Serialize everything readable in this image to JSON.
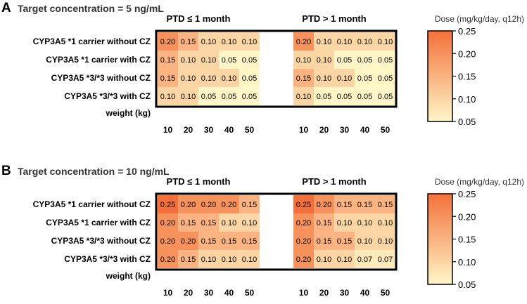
{
  "chart_data": [
    {
      "type": "heatmap",
      "panel_letter": "A",
      "title": "Target concentration = 5 ng/mL",
      "group_labels": [
        "PTD ≤ 1 month",
        "PTD > 1 month"
      ],
      "row_labels": [
        "CYP3A5 *1 carrier without CZ",
        "CYP3A5 *1 carrier with CZ",
        "CYP3A5 *3/*3 without CZ",
        "CYP3A5 *3/*3 with CZ"
      ],
      "x_axis_label": "weight (kg)",
      "x_ticks": [
        "10",
        "20",
        "30",
        "40",
        "50"
      ],
      "groups": [
        {
          "name": "PTD ≤ 1 month",
          "values": [
            [
              0.2,
              0.15,
              0.1,
              0.1,
              0.1
            ],
            [
              0.15,
              0.1,
              0.1,
              0.05,
              0.05
            ],
            [
              0.15,
              0.1,
              0.1,
              0.1,
              0.05
            ],
            [
              0.1,
              0.1,
              0.05,
              0.05,
              0.05
            ]
          ]
        },
        {
          "name": "PTD > 1 month",
          "values": [
            [
              0.2,
              0.1,
              0.1,
              0.1,
              0.1
            ],
            [
              0.1,
              0.1,
              0.05,
              0.05,
              0.05
            ],
            [
              0.15,
              0.1,
              0.1,
              0.05,
              0.05
            ],
            [
              0.1,
              0.05,
              0.05,
              0.05,
              0.05
            ]
          ]
        }
      ],
      "colorbar": {
        "label": "Dose (mg/kg/day, q12h)",
        "range": [
          0.05,
          0.25
        ],
        "ticks": [
          "0.25",
          "0.20",
          "0.15",
          "0.10",
          "0.05"
        ],
        "low_color": "#fff6c8",
        "high_color": "#f4703a"
      }
    },
    {
      "type": "heatmap",
      "panel_letter": "B",
      "title": "Target concentration = 10 ng/mL",
      "group_labels": [
        "PTD ≤ 1 month",
        "PTD > 1 month"
      ],
      "row_labels": [
        "CYP3A5 *1 carrier without CZ",
        "CYP3A5 *1 carrier with CZ",
        "CYP3A5 *3/*3 without CZ",
        "CYP3A5 *3/*3 with CZ"
      ],
      "x_axis_label": "weight (kg)",
      "x_ticks": [
        "10",
        "20",
        "30",
        "40",
        "50"
      ],
      "groups": [
        {
          "name": "PTD ≤ 1 month",
          "values": [
            [
              0.25,
              0.2,
              0.2,
              0.2,
              0.15
            ],
            [
              0.2,
              0.15,
              0.15,
              0.1,
              0.1
            ],
            [
              0.2,
              0.2,
              0.15,
              0.15,
              0.15
            ],
            [
              0.2,
              0.15,
              0.1,
              0.1,
              0.1
            ]
          ]
        },
        {
          "name": "PTD > 1 month",
          "values": [
            [
              0.25,
              0.2,
              0.15,
              0.15,
              0.15
            ],
            [
              0.2,
              0.15,
              0.1,
              0.1,
              0.1
            ],
            [
              0.2,
              0.15,
              0.15,
              0.1,
              0.1
            ],
            [
              0.2,
              0.1,
              0.1,
              0.07,
              0.07
            ]
          ]
        }
      ],
      "colorbar": {
        "label": "Dose (mg/kg/day, q12h)",
        "range": [
          0.05,
          0.25
        ],
        "ticks": [
          "0.25",
          "0.20",
          "0.15",
          "0.10",
          "0.05"
        ],
        "low_color": "#fff6c8",
        "high_color": "#f4703a"
      }
    }
  ]
}
